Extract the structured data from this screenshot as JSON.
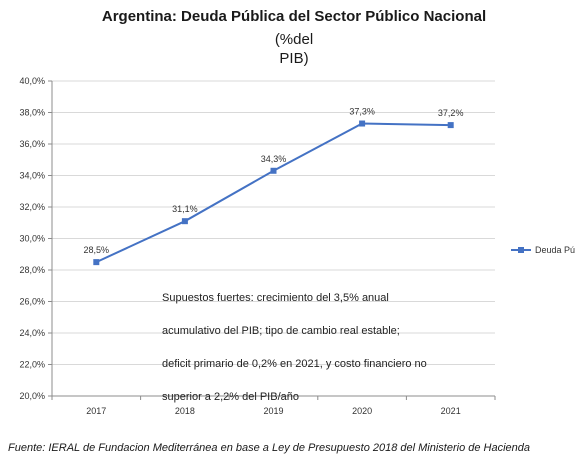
{
  "chart_data": {
    "type": "line",
    "title": "Argentina: Deuda Pública del Sector Público Nacional",
    "subtitle_lines": [
      "(%del",
      "PIB)"
    ],
    "categories": [
      "2017",
      "2018",
      "2019",
      "2020",
      "2021"
    ],
    "series": [
      {
        "name": "Deuda Pú",
        "values": [
          28.5,
          31.1,
          34.3,
          37.3,
          37.2
        ],
        "labels": [
          "28,5%",
          "31,1%",
          "34,3%",
          "37,3%",
          "37,2%"
        ],
        "color": "#4472c4"
      }
    ],
    "ylim": [
      20,
      40
    ],
    "y_ticks": [
      20,
      22,
      24,
      26,
      28,
      30,
      32,
      34,
      36,
      38,
      40
    ],
    "y_tick_labels": [
      "20,0%",
      "22,0%",
      "24,0%",
      "26,0%",
      "28,0%",
      "30,0%",
      "32,0%",
      "34,0%",
      "36,0%",
      "38,0%",
      "40,0%"
    ],
    "grid": "horizontal",
    "legend": "right",
    "annotation_lines": [
      "Supuestos fuertes: crecimiento del 3,5% anual",
      "acumulativo del PIB; tipo de cambio real estable;",
      "deficit primario de 0,2% en 2021, y costo financiero no",
      "superior a 2,2% del PIB/año"
    ]
  },
  "footer": "Fuente: IERAL de Fundacion Mediterránea en base a Ley de Presupuesto 2018 del Ministerio de Hacienda",
  "colors": {
    "series": "#4472c4",
    "grid": "#d9d9d9",
    "axis": "#8c8c8c"
  }
}
